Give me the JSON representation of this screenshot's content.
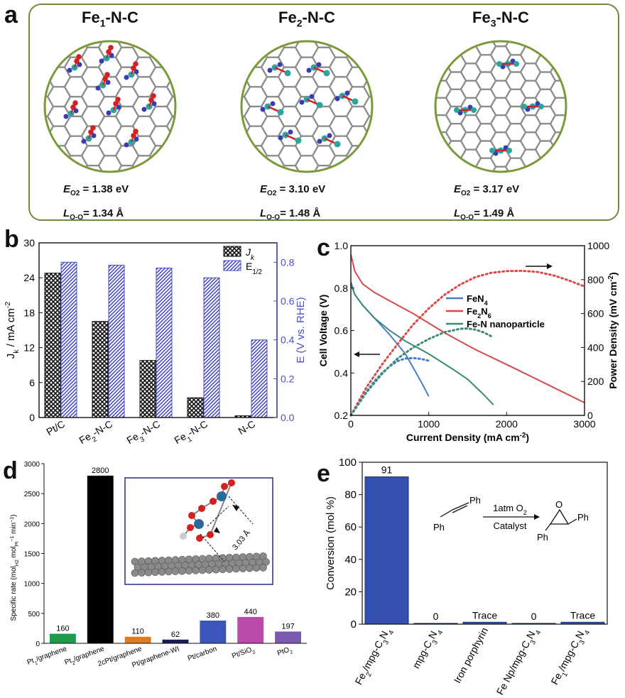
{
  "panel_a": {
    "letter": "a",
    "structures": [
      {
        "name_pre": "Fe",
        "name_sub": "1",
        "name_post": "-N-C",
        "e_label": "E",
        "e_sub": "O2",
        "e_value": "= 1.38 eV",
        "l_label": "L",
        "l_sub": "O-O",
        "l_value": "= 1.34 Å"
      },
      {
        "name_pre": "Fe",
        "name_sub": "2",
        "name_post": "-N-C",
        "e_label": "E",
        "e_sub": "O2",
        "e_value": "= 3.10 eV",
        "l_label": "L",
        "l_sub": "O-O",
        "l_value": "= 1.48 Å"
      },
      {
        "name_pre": "Fe",
        "name_sub": "3",
        "name_post": "-N-C",
        "e_label": "E",
        "e_sub": "O2",
        "e_value": "= 3.17 eV",
        "l_label": "L",
        "l_sub": "O-O",
        "l_value": "= 1.49 Å"
      }
    ],
    "colors": {
      "border": "#6f8a3a",
      "carbon": "#8c8c8c",
      "nitrogen": "#3b3bb0",
      "iron": "#2aa6a0",
      "oxygen": "#d42020"
    }
  },
  "chart_data": [
    {
      "panel": "b",
      "type": "bar",
      "categories": [
        "Pt/C",
        "Fe2-N-C",
        "Fe3-N-C",
        "Fe1-N-C",
        "N-C"
      ],
      "series": [
        {
          "name": "Jk",
          "axis": "left",
          "values": [
            24.8,
            16.5,
            9.8,
            3.4,
            0.3
          ],
          "color": "#222222",
          "pattern": "crosshatch"
        },
        {
          "name": "E1/2",
          "axis": "right",
          "values": [
            0.8,
            0.785,
            0.77,
            0.72,
            0.4
          ],
          "color": "#4a4fc4",
          "pattern": "diagonal"
        }
      ],
      "legend": [
        "J",
        "E"
      ],
      "legend_subs": [
        "k",
        "1/2"
      ],
      "ylabel_left": "J",
      "ylabel_left_sub": "k",
      "ylabel_left_rest": " / mA cm",
      "ylabel_left_sup": "-2",
      "ylabel_right": "E (V vs. RHE)",
      "ylim_left": [
        0,
        30
      ],
      "yticks_left": [
        "0",
        "6",
        "12",
        "18",
        "24",
        "30"
      ],
      "ylim_right": [
        0,
        0.9
      ],
      "yticks_right": [
        "0.0",
        "0.2",
        "0.4",
        "0.6",
        "0.8"
      ],
      "tick_labels": [
        {
          "pre": "Pt/C",
          "sub": "",
          "post": ""
        },
        {
          "pre": "Fe",
          "sub": "2",
          "post": "-N-C"
        },
        {
          "pre": "Fe",
          "sub": "3",
          "post": "-N-C"
        },
        {
          "pre": "Fe",
          "sub": "1",
          "post": "-N-C"
        },
        {
          "pre": "N-C",
          "sub": "",
          "post": ""
        }
      ]
    },
    {
      "panel": "c",
      "type": "line",
      "xlabel": "Current Density (mA cm",
      "xlabel_sup": "-2",
      "xlabel_end": ")",
      "ylabel_left": "Cell Voltage (V)",
      "ylabel_right": "Power Density (mV cm",
      "ylabel_right_sup": "-2",
      "ylabel_right_end": ")",
      "xlim": [
        0,
        3000
      ],
      "xticks": [
        "0",
        "1000",
        "2000",
        "3000"
      ],
      "ylim_left": [
        0.2,
        1.0
      ],
      "yticks_left": [
        "0.2",
        "0.4",
        "0.6",
        "0.8",
        "1.0"
      ],
      "ylim_right": [
        0,
        1000
      ],
      "yticks_right": [
        "0",
        "200",
        "400",
        "600",
        "800",
        "1000"
      ],
      "series": [
        {
          "name": "FeN4",
          "legend_pre": "FeN",
          "legend_sub": "4",
          "legend_post": "",
          "color": "#4a7cc9",
          "voltage": [
            [
              0,
              0.83
            ],
            [
              50,
              0.77
            ],
            [
              150,
              0.72
            ],
            [
              300,
              0.66
            ],
            [
              500,
              0.58
            ],
            [
              700,
              0.49
            ],
            [
              900,
              0.36
            ],
            [
              1000,
              0.29
            ]
          ],
          "power": [
            [
              0,
              0
            ],
            [
              100,
              75
            ],
            [
              200,
              140
            ],
            [
              300,
              200
            ],
            [
              400,
              250
            ],
            [
              500,
              290
            ],
            [
              600,
              320
            ],
            [
              700,
              335
            ],
            [
              800,
              338
            ],
            [
              900,
              333
            ],
            [
              1000,
              322
            ]
          ]
        },
        {
          "name": "Fe2N6",
          "legend_pre": "Fe",
          "legend_sub": "2",
          "legend_post": "N",
          "legend_sub2": "6",
          "color": "#d84a4a",
          "voltage": [
            [
              0,
              0.96
            ],
            [
              50,
              0.88
            ],
            [
              150,
              0.82
            ],
            [
              300,
              0.78
            ],
            [
              500,
              0.74
            ],
            [
              800,
              0.68
            ],
            [
              1200,
              0.59
            ],
            [
              1600,
              0.51
            ],
            [
              2000,
              0.44
            ],
            [
              2500,
              0.35
            ],
            [
              3000,
              0.26
            ]
          ],
          "power": [
            [
              0,
              0
            ],
            [
              200,
              165
            ],
            [
              400,
              300
            ],
            [
              600,
              420
            ],
            [
              800,
              535
            ],
            [
              1000,
              630
            ],
            [
              1200,
              710
            ],
            [
              1400,
              770
            ],
            [
              1600,
              815
            ],
            [
              1800,
              840
            ],
            [
              2000,
              850
            ],
            [
              2200,
              852
            ],
            [
              2400,
              845
            ],
            [
              2600,
              825
            ],
            [
              2800,
              795
            ],
            [
              3000,
              760
            ]
          ]
        },
        {
          "name": "Fe-N nanoparticle",
          "legend_pre": "Fe-N nanoparticle",
          "legend_sub": "",
          "legend_post": "",
          "color": "#3a8a78",
          "voltage": [
            [
              0,
              0.82
            ],
            [
              50,
              0.77
            ],
            [
              150,
              0.72
            ],
            [
              300,
              0.66
            ],
            [
              500,
              0.6
            ],
            [
              700,
              0.55
            ],
            [
              1000,
              0.49
            ],
            [
              1300,
              0.42
            ],
            [
              1500,
              0.37
            ],
            [
              1700,
              0.3
            ],
            [
              1830,
              0.25
            ]
          ],
          "power": [
            [
              0,
              0
            ],
            [
              200,
              135
            ],
            [
              400,
              245
            ],
            [
              600,
              335
            ],
            [
              800,
              400
            ],
            [
              1000,
              450
            ],
            [
              1200,
              490
            ],
            [
              1400,
              510
            ],
            [
              1500,
              512
            ],
            [
              1600,
              505
            ],
            [
              1700,
              490
            ],
            [
              1830,
              460
            ]
          ]
        }
      ]
    },
    {
      "panel": "d",
      "type": "bar",
      "ylabel": "Specific rate (mol",
      "ylabel_sub": "H2",
      "ylabel_mid": " mol",
      "ylabel_sub2": "Pt",
      "ylabel_sup": "−1",
      "ylabel_end": " min",
      "ylabel_sup2": "−1",
      "ylabel_close": ")",
      "ylim": [
        0,
        3000
      ],
      "yticks": [
        "0",
        "500",
        "1000",
        "1500",
        "2000",
        "2500",
        "3000"
      ],
      "categories": [
        {
          "pre": "Pt",
          "sub": "1",
          "post": "/graphene"
        },
        {
          "pre": "Pt",
          "sub": "2",
          "post": "/graphene"
        },
        {
          "pre": "2cPt/graphene",
          "sub": "",
          "post": ""
        },
        {
          "pre": "Pt/graphene-WI",
          "sub": "",
          "post": ""
        },
        {
          "pre": "Pt/carbon",
          "sub": "",
          "post": ""
        },
        {
          "pre": "Pt/SiO",
          "sub": "2",
          "post": ""
        },
        {
          "pre": "PtO",
          "sub": "2",
          "post": ""
        }
      ],
      "values": [
        160,
        2800,
        110,
        62,
        380,
        440,
        197
      ],
      "value_labels": [
        "160",
        "2800",
        "110",
        "62",
        "380",
        "440",
        "197"
      ],
      "colors": [
        "#1e9a4c",
        "#000000",
        "#e07a22",
        "#1a1a5a",
        "#3a56b8",
        "#b84aa8",
        "#7a5ab0"
      ],
      "inset_label": "3.03 Å"
    },
    {
      "panel": "e",
      "type": "bar",
      "ylabel": "Conversion (mol %)",
      "ylim": [
        0,
        100
      ],
      "yticks": [
        "0",
        "20",
        "40",
        "60",
        "80",
        "100"
      ],
      "categories": [
        {
          "parts": [
            [
              "Fe",
              ""
            ],
            [
              "2",
              "sub"
            ],
            [
              "/mpg-C",
              ""
            ],
            [
              "3",
              "sub"
            ],
            [
              "N",
              ""
            ],
            [
              "4",
              "sub"
            ]
          ]
        },
        {
          "parts": [
            [
              "mpg-C",
              ""
            ],
            [
              "3",
              "sub"
            ],
            [
              "N",
              ""
            ],
            [
              "4",
              "sub"
            ]
          ]
        },
        {
          "parts": [
            [
              "Iron porphyrin",
              ""
            ]
          ]
        },
        {
          "parts": [
            [
              "Fe Np/mpg-C",
              ""
            ],
            [
              "3",
              "sub"
            ],
            [
              "N",
              ""
            ],
            [
              "4",
              "sub"
            ]
          ]
        },
        {
          "parts": [
            [
              "Fe",
              ""
            ],
            [
              "1",
              "sub"
            ],
            [
              "/mpg-C",
              ""
            ],
            [
              "3",
              "sub"
            ],
            [
              "N",
              ""
            ],
            [
              "4",
              "sub"
            ]
          ]
        }
      ],
      "values": [
        91,
        0.5,
        1.2,
        0.5,
        1.2
      ],
      "value_labels": [
        "91",
        "0",
        "Trace",
        "0",
        "Trace"
      ],
      "color": "#3550b0",
      "reaction": {
        "reagent": "1atm O",
        "reagent_sub": "2",
        "catalyst": "Catalyst",
        "ph": "Ph",
        "o": "O"
      }
    }
  ],
  "letters": {
    "b": "b",
    "c": "c",
    "d": "d",
    "e": "e"
  }
}
